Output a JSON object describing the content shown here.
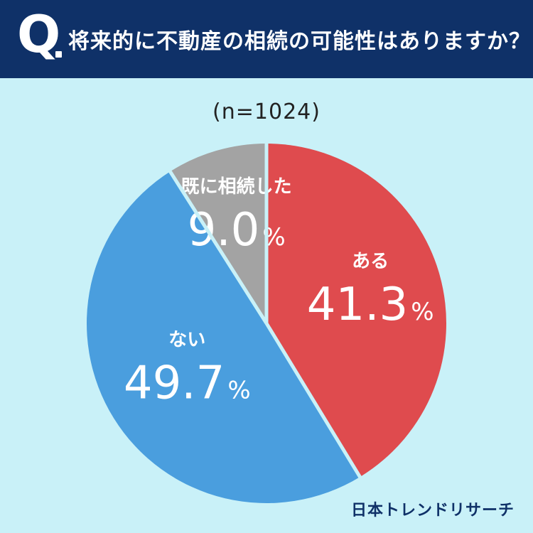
{
  "header": {
    "q_mark": "Q",
    "question": "将来的に不動産の相続の可能性はありますか？"
  },
  "sample_size": "(n=1024)",
  "brand": "日本トレンドリサーチ",
  "chart_data": {
    "type": "pie",
    "title": "将来的に不動産の相続の可能性はありますか？",
    "start_angle_deg": 0,
    "direction": "clockwise",
    "slices": [
      {
        "label": "ある",
        "value": 41.3,
        "display": "41.3",
        "unit": "%",
        "color": "#df4b4e"
      },
      {
        "label": "ない",
        "value": 49.7,
        "display": "49.7",
        "unit": "%",
        "color": "#4a9ede"
      },
      {
        "label": "既に相続した",
        "value": 9.0,
        "display": "9.0",
        "unit": "%",
        "color": "#a3a3a3"
      }
    ],
    "separator_color": "#c9f1f8"
  }
}
